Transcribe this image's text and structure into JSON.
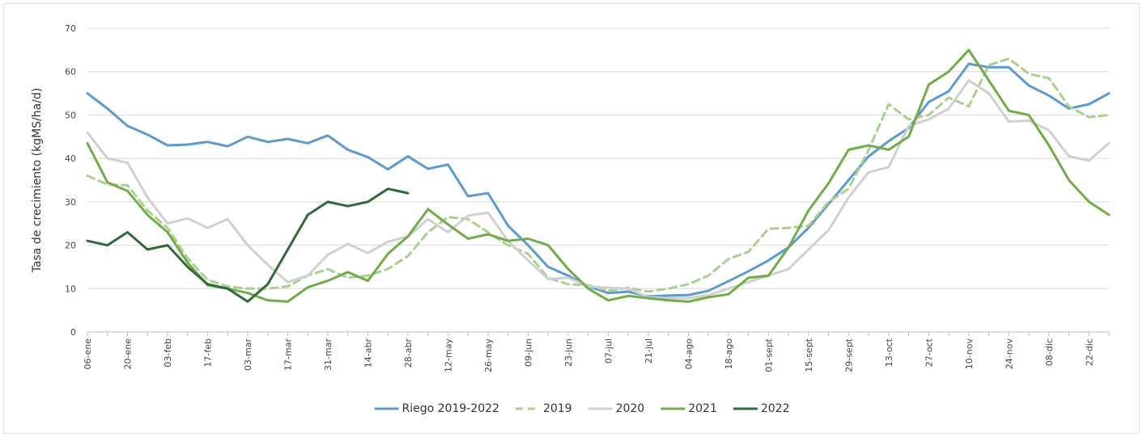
{
  "chart_data": {
    "type": "line",
    "y_label": "Tasa de crecimiento (kgMS/ha/d)",
    "categories": [
      "06-ene",
      null,
      "20-ene",
      null,
      "03-feb",
      null,
      "17-feb",
      null,
      "03-mar",
      null,
      "17-mar",
      null,
      "31-mar",
      null,
      "14-abr",
      null,
      "28-abr",
      null,
      "12-may",
      null,
      "26-may",
      null,
      "09-jun",
      null,
      "23-jun",
      null,
      "07-jul",
      null,
      "21-jul",
      null,
      "04-ago",
      null,
      "18-ago",
      null,
      "01-sept",
      null,
      "15-sept",
      null,
      "29-sept",
      null,
      "13-oct",
      null,
      "27-oct",
      null,
      "10-nov",
      null,
      "24-nov",
      null,
      "08-dic",
      null,
      "22-dic",
      null
    ],
    "ylim": [
      0,
      70
    ],
    "yticks": [
      0,
      10,
      20,
      30,
      40,
      50,
      60,
      70
    ],
    "grid": true,
    "legend": "bottom",
    "series": [
      {
        "name": "Riego 2019-2022",
        "color": "#5b9bd5",
        "dashed": false,
        "width": 3,
        "values": [
          55,
          51.5,
          47.5,
          45.5,
          43,
          43.2,
          43.8,
          42.8,
          45,
          43.8,
          44.5,
          43.5,
          45.3,
          42,
          40.3,
          37.5,
          40.5,
          37.6,
          38.6,
          31.3,
          32,
          24.5,
          20,
          15,
          13,
          10.5,
          9,
          9.3,
          8.2,
          8.4,
          8.5,
          9.5,
          11.7,
          14,
          16.5,
          19.5,
          24,
          29.5,
          35,
          40.5,
          44,
          47,
          53,
          55.5,
          61.8,
          61,
          61,
          56.8,
          54.5,
          51.5,
          52.5,
          55
        ]
      },
      {
        "name": "2019",
        "color": "#a9d18e",
        "dashed": true,
        "width": 3,
        "values": [
          36,
          34,
          33.8,
          28,
          24,
          17,
          12,
          10.5,
          10,
          10,
          10.5,
          13,
          14.5,
          12.5,
          13,
          14.5,
          17.5,
          23,
          26.5,
          26,
          23,
          20,
          18,
          12.5,
          11,
          10.8,
          9.5,
          10.2,
          9.3,
          10,
          11,
          13,
          16.8,
          18.5,
          23.8,
          24,
          24.5,
          30,
          33,
          42,
          52.5,
          49,
          50,
          54,
          52,
          61.5,
          63,
          59.5,
          58.5,
          52,
          49.5,
          50
        ]
      },
      {
        "name": "2020",
        "color": "#d0d0d0",
        "dashed": false,
        "width": 3,
        "values": [
          46,
          40,
          39,
          31,
          25,
          26.2,
          24,
          26,
          20,
          15.5,
          11.5,
          13,
          17.8,
          20.3,
          18.2,
          20.8,
          22,
          26,
          23,
          26.8,
          27.5,
          21,
          16.5,
          12.2,
          12.5,
          10.5,
          10.2,
          10,
          8,
          7.8,
          7.8,
          8.5,
          10,
          11.5,
          13,
          14.5,
          19,
          23.5,
          31,
          36.8,
          38,
          47.5,
          49,
          51.5,
          58,
          55,
          48.5,
          48.7,
          46.5,
          40.5,
          39.5,
          43.5
        ]
      },
      {
        "name": "2021",
        "color": "#70ad47",
        "dashed": false,
        "width": 3,
        "values": [
          43.5,
          34.5,
          32.5,
          27,
          23,
          16,
          10.8,
          10,
          9,
          7.3,
          7,
          10.3,
          11.8,
          13.8,
          11.8,
          18,
          22,
          28.3,
          24.8,
          21.5,
          22.5,
          21,
          21.5,
          20,
          14.5,
          10,
          7.3,
          8.3,
          7.8,
          7.3,
          7,
          8,
          8.7,
          12.5,
          13,
          19.5,
          28,
          34.3,
          42,
          43,
          42,
          45,
          57,
          60,
          65,
          58,
          51,
          50,
          43,
          35,
          30,
          27
        ]
      },
      {
        "name": "2022",
        "color": "#2e6b3a",
        "dashed": false,
        "width": 3,
        "values": [
          21,
          20,
          23,
          19,
          20,
          15,
          11,
          10,
          7,
          11,
          19,
          27,
          30,
          29,
          30,
          33,
          32,
          null,
          null,
          null,
          null,
          null,
          null,
          null,
          null,
          null,
          null,
          null,
          null,
          null,
          null,
          null,
          null,
          null,
          null,
          null,
          null,
          null,
          null,
          null,
          null,
          null,
          null,
          null,
          null,
          null,
          null,
          null,
          null,
          null,
          null,
          null
        ]
      }
    ]
  }
}
